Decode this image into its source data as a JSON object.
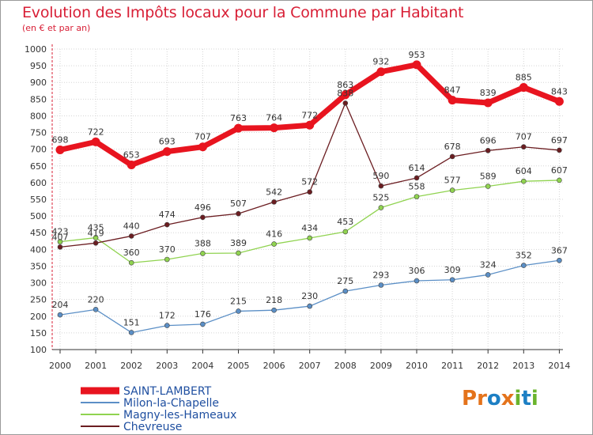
{
  "title": "Evolution des Impôts locaux pour la Commune par Habitant",
  "subtitle": "(en € et par an)",
  "colors": {
    "title": "#d81f36",
    "grid": "#d5d5d5",
    "axis": "#333333",
    "red_axis": "#d81f36"
  },
  "logo": {
    "text": "Proxiti",
    "letters": [
      {
        "ch": "P",
        "color": "#e4731b"
      },
      {
        "ch": "r",
        "color": "#e4731b"
      },
      {
        "ch": "o",
        "color": "#1d7fc4"
      },
      {
        "ch": "x",
        "color": "#e4731b"
      },
      {
        "ch": "i",
        "color": "#6ab42d"
      },
      {
        "ch": "t",
        "color": "#1d7fc4"
      },
      {
        "ch": "i",
        "color": "#6ab42d"
      }
    ]
  },
  "chart_data": {
    "type": "line",
    "title": "Evolution des Impôts locaux pour la Commune par Habitant",
    "subtitle": "(en € et par an)",
    "xlabel": "",
    "ylabel": "",
    "ylim": [
      100,
      1000
    ],
    "yticks": [
      100,
      150,
      200,
      250,
      300,
      350,
      400,
      450,
      500,
      550,
      600,
      650,
      700,
      750,
      800,
      850,
      900,
      950,
      1000
    ],
    "grid": true,
    "legend_position": "bottom-left",
    "categories": [
      "2000",
      "2001",
      "2002",
      "2003",
      "2004",
      "2005",
      "2006",
      "2007",
      "2008",
      "2009",
      "2010",
      "2011",
      "2012",
      "2013",
      "2014"
    ],
    "series": [
      {
        "name": "SAINT-LAMBERT",
        "color": "#e8141f",
        "width": 7,
        "marker": 5,
        "values": [
          698,
          722,
          653,
          693,
          707,
          763,
          764,
          772,
          863,
          932,
          953,
          847,
          839,
          885,
          843
        ]
      },
      {
        "name": "Milon-la-Chapelle",
        "color": "#5b8fc6",
        "width": 1.3,
        "marker": 3,
        "values": [
          204,
          220,
          151,
          172,
          176,
          215,
          218,
          230,
          275,
          293,
          306,
          309,
          324,
          352,
          367
        ]
      },
      {
        "name": "Magny-les-Hameaux",
        "color": "#90d350",
        "width": 1.3,
        "marker": 3,
        "values": [
          423,
          435,
          360,
          370,
          388,
          389,
          416,
          434,
          453,
          525,
          558,
          577,
          589,
          604,
          607
        ]
      },
      {
        "name": "Chevreuse",
        "color": "#6b1d21",
        "width": 1.3,
        "marker": 3,
        "values": [
          407,
          419,
          440,
          474,
          496,
          507,
          542,
          572,
          838,
          590,
          614,
          678,
          696,
          707,
          697
        ]
      }
    ]
  }
}
